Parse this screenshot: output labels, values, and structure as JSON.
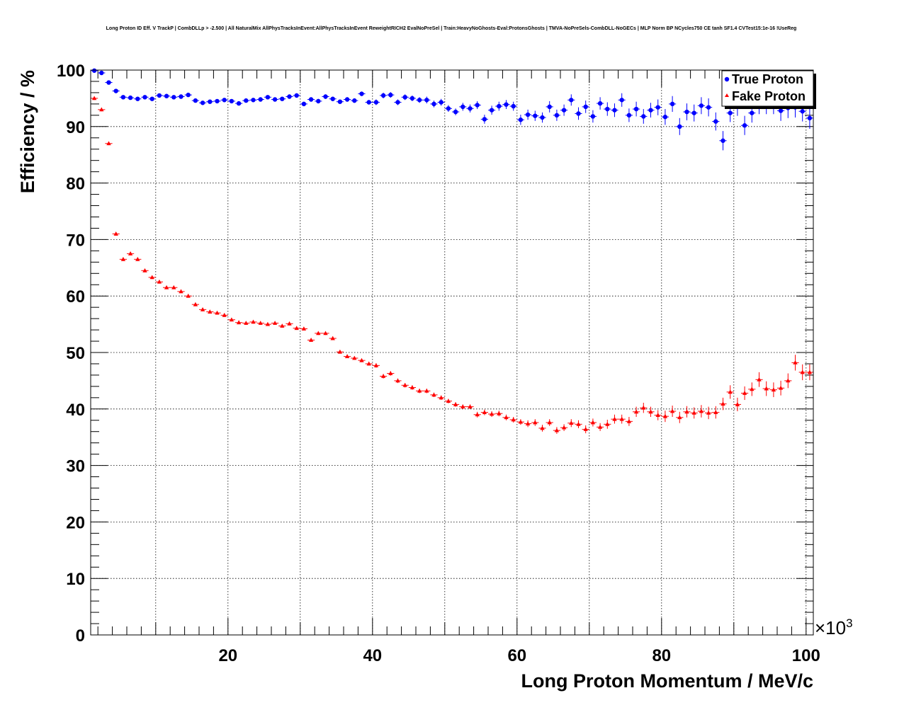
{
  "chart_data": {
    "type": "scatter",
    "title": "Long Proton ID Eff. V TrackP | CombDLLp > -2.500 | All NaturalMix AllPhysTracksInEvent:AllPhysTracksInEvent ReweightRICH2 EvalNoPreSel | Train:HeavyNoGhosts-Eval:ProtonsGhosts | TMVA-NoPreSels-CombDLL-NoGECs | MLP Norm BP NCycles750 CE tanh SF1.4 CVTest15:1e-16 !UseReg",
    "xlabel": "Long Proton Momentum / MeV/c",
    "ylabel": "Efficiency / %",
    "x_exponent_label": "×10",
    "x_exponent_power": "3",
    "xlim": [
      1,
      101
    ],
    "ylim": [
      0,
      100
    ],
    "x_ticks": [
      20,
      40,
      60,
      80,
      100
    ],
    "y_ticks": [
      0,
      10,
      20,
      30,
      40,
      50,
      60,
      70,
      80,
      90,
      100
    ],
    "grid": true,
    "legend_position": "top-right",
    "x_bin_centers": [
      1.5,
      2.5,
      3.5,
      4.5,
      5.5,
      6.5,
      7.5,
      8.5,
      9.5,
      10.5,
      11.5,
      12.5,
      13.5,
      14.5,
      15.5,
      16.5,
      17.5,
      18.5,
      19.5,
      20.5,
      21.5,
      22.5,
      23.5,
      24.5,
      25.5,
      26.5,
      27.5,
      28.5,
      29.5,
      30.5,
      31.5,
      32.5,
      33.5,
      34.5,
      35.5,
      36.5,
      37.5,
      38.5,
      39.5,
      40.5,
      41.5,
      42.5,
      43.5,
      44.5,
      45.5,
      46.5,
      47.5,
      48.5,
      49.5,
      50.5,
      51.5,
      52.5,
      53.5,
      54.5,
      55.5,
      56.5,
      57.5,
      58.5,
      59.5,
      60.5,
      61.5,
      62.5,
      63.5,
      64.5,
      65.5,
      66.5,
      67.5,
      68.5,
      69.5,
      70.5,
      71.5,
      72.5,
      73.5,
      74.5,
      75.5,
      76.5,
      77.5,
      78.5,
      79.5,
      80.5,
      81.5,
      82.5,
      83.5,
      84.5,
      85.5,
      86.5,
      87.5,
      88.5,
      89.5,
      90.5,
      91.5,
      92.5,
      93.5,
      94.5,
      95.5,
      96.5,
      97.5,
      98.5,
      99.5,
      100.5
    ],
    "series": [
      {
        "name": "True Proton",
        "color": "#0000ff",
        "marker": "circle",
        "values": [
          99.9,
          99.5,
          97.8,
          96.3,
          95.2,
          95.1,
          94.9,
          95.2,
          94.9,
          95.5,
          95.4,
          95.2,
          95.3,
          95.6,
          94.6,
          94.2,
          94.4,
          94.5,
          94.7,
          94.5,
          94.1,
          94.6,
          94.7,
          94.8,
          95.2,
          94.8,
          94.9,
          95.3,
          95.5,
          94.0,
          94.8,
          94.5,
          95.3,
          94.9,
          94.4,
          94.8,
          94.6,
          95.8,
          94.3,
          94.3,
          95.5,
          95.6,
          94.3,
          95.2,
          95.0,
          94.7,
          94.7,
          94.0,
          94.3,
          93.2,
          92.6,
          93.5,
          93.2,
          93.8,
          91.3,
          92.9,
          93.6,
          93.9,
          93.6,
          91.2,
          92.1,
          91.9,
          91.6,
          93.5,
          92.0,
          92.9,
          94.7,
          92.3,
          93.5,
          91.8,
          94.1,
          93.1,
          92.9,
          94.7,
          92.0,
          93.1,
          91.8,
          92.9,
          93.4,
          91.7,
          94.0,
          90.0,
          92.6,
          92.4,
          93.7,
          93.4,
          90.9,
          87.5,
          92.4,
          93.5,
          90.2,
          92.4,
          93.9,
          93.9,
          93.9,
          92.8,
          93.3,
          93.4,
          92.7,
          91.5
        ],
        "errors": [
          0.1,
          0.2,
          0.2,
          0.2,
          0.2,
          0.2,
          0.2,
          0.2,
          0.2,
          0.2,
          0.2,
          0.2,
          0.2,
          0.2,
          0.3,
          0.3,
          0.3,
          0.3,
          0.3,
          0.3,
          0.3,
          0.3,
          0.3,
          0.3,
          0.3,
          0.3,
          0.3,
          0.3,
          0.4,
          0.4,
          0.4,
          0.4,
          0.4,
          0.4,
          0.4,
          0.4,
          0.4,
          0.4,
          0.4,
          0.5,
          0.5,
          0.5,
          0.5,
          0.5,
          0.5,
          0.5,
          0.6,
          0.6,
          0.6,
          0.6,
          0.6,
          0.7,
          0.7,
          0.7,
          0.8,
          0.8,
          0.8,
          0.8,
          0.8,
          0.9,
          0.9,
          0.9,
          0.9,
          1.0,
          1.0,
          1.0,
          1.0,
          1.1,
          1.1,
          1.1,
          1.1,
          1.2,
          1.2,
          1.2,
          1.2,
          1.3,
          1.3,
          1.3,
          1.4,
          1.4,
          1.4,
          1.5,
          1.5,
          1.5,
          1.5,
          1.6,
          1.6,
          1.7,
          1.6,
          1.6,
          1.7,
          1.7,
          1.7,
          1.7,
          1.7,
          1.8,
          1.8,
          1.8,
          1.8,
          1.9
        ]
      },
      {
        "name": "Fake Proton",
        "color": "#ff0000",
        "marker": "triangle",
        "values": [
          95.0,
          93.0,
          87.0,
          71.0,
          66.5,
          67.5,
          66.5,
          64.5,
          63.3,
          62.5,
          61.5,
          61.5,
          60.8,
          60.0,
          58.5,
          57.6,
          57.2,
          57.0,
          56.6,
          55.8,
          55.3,
          55.2,
          55.4,
          55.2,
          55.0,
          55.2,
          54.7,
          55.1,
          54.3,
          54.2,
          52.2,
          53.4,
          53.4,
          52.5,
          50.1,
          49.3,
          49.0,
          48.6,
          48.0,
          47.7,
          45.8,
          46.3,
          45.0,
          44.2,
          43.8,
          43.2,
          43.2,
          42.5,
          42.0,
          41.4,
          40.8,
          40.4,
          40.4,
          39.0,
          39.4,
          39.1,
          39.2,
          38.5,
          38.1,
          37.7,
          37.4,
          37.6,
          36.6,
          37.6,
          36.2,
          36.7,
          37.5,
          37.3,
          36.4,
          37.6,
          36.8,
          37.3,
          38.2,
          38.2,
          37.8,
          39.5,
          40.2,
          39.5,
          38.9,
          38.7,
          39.6,
          38.5,
          39.5,
          39.3,
          39.6,
          39.3,
          39.4,
          40.9,
          43.0,
          40.8,
          42.8,
          43.5,
          45.2,
          43.6,
          43.4,
          43.7,
          45.0,
          48.2,
          46.5,
          46.5
        ],
        "errors": [
          0.3,
          0.3,
          0.3,
          0.3,
          0.3,
          0.3,
          0.3,
          0.3,
          0.3,
          0.3,
          0.3,
          0.3,
          0.3,
          0.3,
          0.3,
          0.3,
          0.3,
          0.3,
          0.3,
          0.3,
          0.3,
          0.3,
          0.3,
          0.3,
          0.3,
          0.3,
          0.3,
          0.3,
          0.3,
          0.3,
          0.3,
          0.3,
          0.3,
          0.3,
          0.3,
          0.3,
          0.3,
          0.3,
          0.3,
          0.4,
          0.4,
          0.4,
          0.4,
          0.4,
          0.4,
          0.4,
          0.4,
          0.4,
          0.4,
          0.4,
          0.4,
          0.4,
          0.4,
          0.5,
          0.5,
          0.5,
          0.5,
          0.5,
          0.5,
          0.5,
          0.6,
          0.6,
          0.6,
          0.6,
          0.6,
          0.6,
          0.7,
          0.7,
          0.7,
          0.7,
          0.7,
          0.8,
          0.8,
          0.8,
          0.8,
          0.9,
          0.9,
          0.9,
          0.9,
          1.0,
          1.0,
          1.0,
          1.0,
          1.0,
          1.1,
          1.1,
          1.1,
          1.1,
          1.2,
          1.2,
          1.2,
          1.2,
          1.3,
          1.3,
          1.3,
          1.3,
          1.3,
          1.4,
          1.4,
          1.4
        ]
      }
    ]
  }
}
